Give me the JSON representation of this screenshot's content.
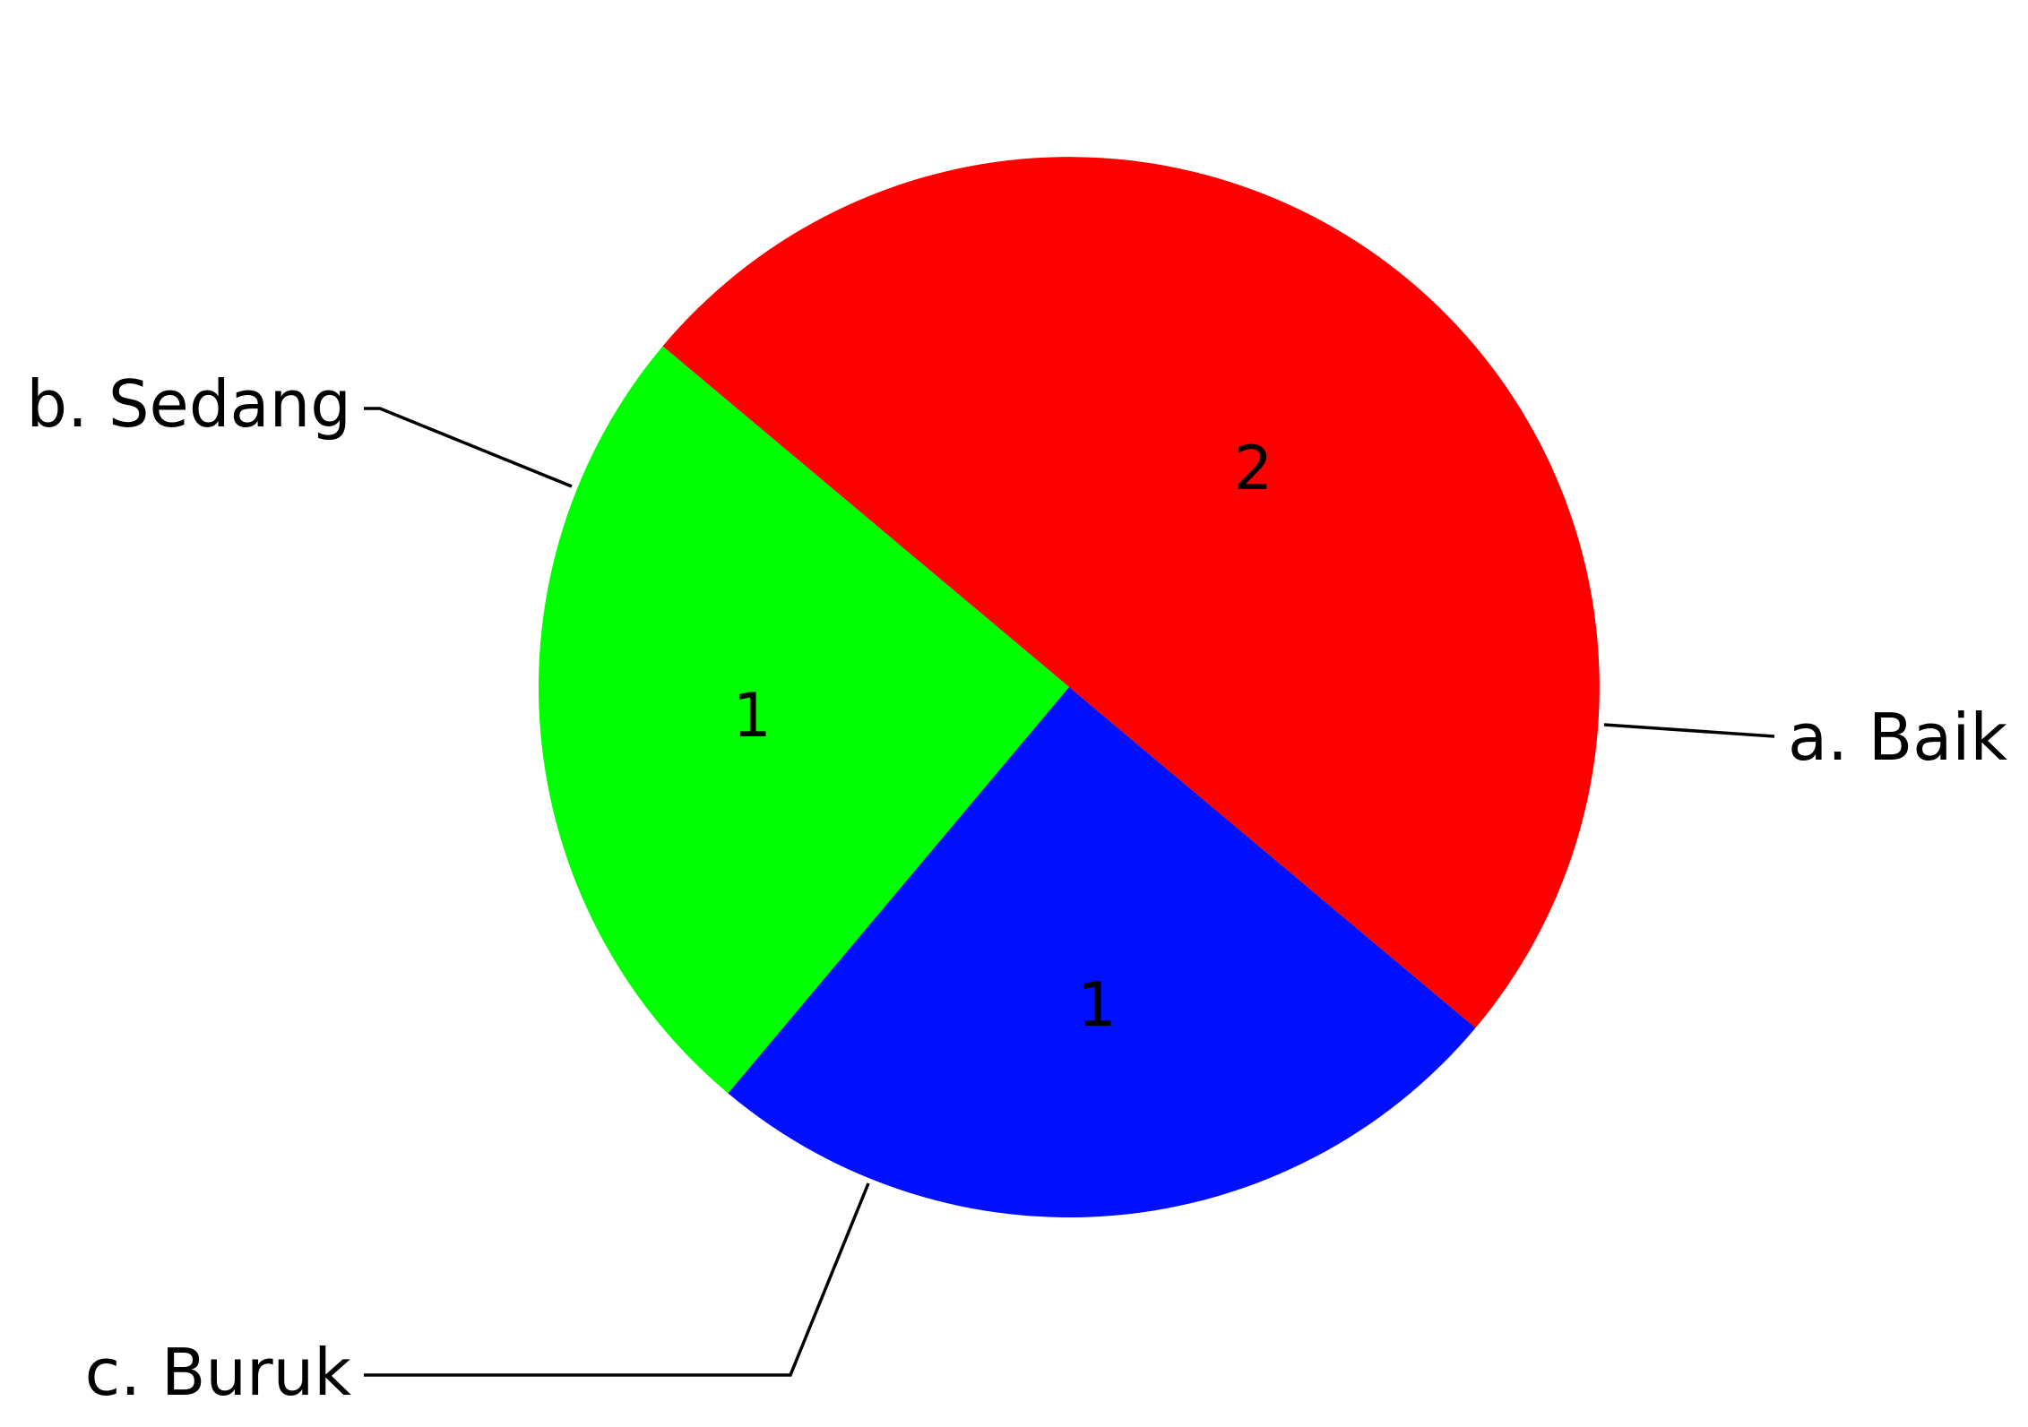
{
  "chart_data": {
    "type": "pie",
    "title": "",
    "categories": [
      "a. Baik",
      "b. Sedang",
      "c. Buruk"
    ],
    "values": [
      2,
      1,
      1
    ],
    "value_labels": [
      "2",
      "1",
      "1"
    ],
    "colors": [
      "#ff0000",
      "#00ff00",
      "#0010ff"
    ],
    "legend": "none",
    "label_placement": "outside-with-leader-lines"
  }
}
